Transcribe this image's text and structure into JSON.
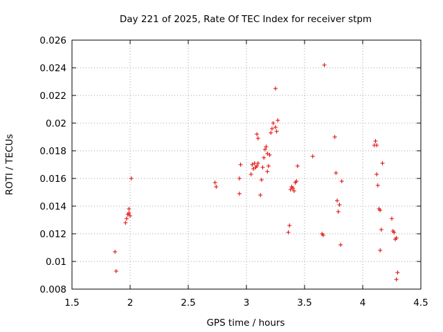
{
  "chart_data": {
    "type": "scatter",
    "title": "Day 221 of 2025, Rate Of TEC Index for receiver stpm",
    "xlabel": "GPS time / hours",
    "ylabel": "ROTI / TECUs",
    "xlim": [
      1.5,
      4.5
    ],
    "ylim": [
      0.008,
      0.026
    ],
    "grid": true,
    "marker": "+",
    "color": "#e00000",
    "xticks": [
      1.5,
      2,
      2.5,
      3,
      3.5,
      4,
      4.5
    ],
    "xtick_labels": [
      "1.5",
      "2",
      "2.5",
      "3",
      "3.5",
      "4",
      "4.5"
    ],
    "yticks": [
      0.008,
      0.01,
      0.012,
      0.014,
      0.016,
      0.018,
      0.02,
      0.022,
      0.024,
      0.026
    ],
    "ytick_labels": [
      "0.008",
      "0.01",
      "0.012",
      "0.014",
      "0.016",
      "0.018",
      "0.02",
      "0.022",
      "0.024",
      "0.026"
    ],
    "points": [
      [
        1.87,
        0.0107
      ],
      [
        1.88,
        0.0093
      ],
      [
        1.96,
        0.0128
      ],
      [
        1.97,
        0.0131
      ],
      [
        1.98,
        0.0134
      ],
      [
        1.99,
        0.0135
      ],
      [
        1.99,
        0.0138
      ],
      [
        2.0,
        0.0133
      ],
      [
        2.01,
        0.016
      ],
      [
        2.73,
        0.0157
      ],
      [
        2.74,
        0.0154
      ],
      [
        2.94,
        0.0149
      ],
      [
        2.94,
        0.016
      ],
      [
        2.95,
        0.017
      ],
      [
        3.04,
        0.0163
      ],
      [
        3.05,
        0.017
      ],
      [
        3.06,
        0.0167
      ],
      [
        3.07,
        0.0171
      ],
      [
        3.08,
        0.0168
      ],
      [
        3.09,
        0.0169
      ],
      [
        3.1,
        0.0171
      ],
      [
        3.09,
        0.0192
      ],
      [
        3.1,
        0.0189
      ],
      [
        3.12,
        0.0148
      ],
      [
        3.13,
        0.0159
      ],
      [
        3.14,
        0.0168
      ],
      [
        3.15,
        0.0175
      ],
      [
        3.16,
        0.0181
      ],
      [
        3.17,
        0.0183
      ],
      [
        3.18,
        0.0178
      ],
      [
        3.18,
        0.0165
      ],
      [
        3.19,
        0.0169
      ],
      [
        3.2,
        0.0177
      ],
      [
        3.21,
        0.0193
      ],
      [
        3.22,
        0.0196
      ],
      [
        3.23,
        0.02
      ],
      [
        3.25,
        0.0197
      ],
      [
        3.25,
        0.0225
      ],
      [
        3.26,
        0.0194
      ],
      [
        3.27,
        0.0202
      ],
      [
        3.36,
        0.0121
      ],
      [
        3.37,
        0.0126
      ],
      [
        3.38,
        0.0152
      ],
      [
        3.39,
        0.0154
      ],
      [
        3.4,
        0.0153
      ],
      [
        3.41,
        0.0151
      ],
      [
        3.42,
        0.0157
      ],
      [
        3.43,
        0.0158
      ],
      [
        3.44,
        0.0169
      ],
      [
        3.57,
        0.0176
      ],
      [
        3.65,
        0.012
      ],
      [
        3.66,
        0.0119
      ],
      [
        3.67,
        0.0242
      ],
      [
        3.76,
        0.019
      ],
      [
        3.77,
        0.0164
      ],
      [
        3.78,
        0.0144
      ],
      [
        3.79,
        0.0136
      ],
      [
        3.8,
        0.0141
      ],
      [
        3.81,
        0.0112
      ],
      [
        3.82,
        0.0158
      ],
      [
        4.1,
        0.0184
      ],
      [
        4.11,
        0.0187
      ],
      [
        4.12,
        0.0184
      ],
      [
        4.12,
        0.0163
      ],
      [
        4.13,
        0.0155
      ],
      [
        4.14,
        0.0138
      ],
      [
        4.15,
        0.0137
      ],
      [
        4.15,
        0.0108
      ],
      [
        4.16,
        0.0123
      ],
      [
        4.17,
        0.0171
      ],
      [
        4.25,
        0.0131
      ],
      [
        4.26,
        0.0122
      ],
      [
        4.27,
        0.0121
      ],
      [
        4.28,
        0.0116
      ],
      [
        4.29,
        0.0117
      ],
      [
        4.29,
        0.0087
      ],
      [
        4.3,
        0.0092
      ]
    ]
  }
}
